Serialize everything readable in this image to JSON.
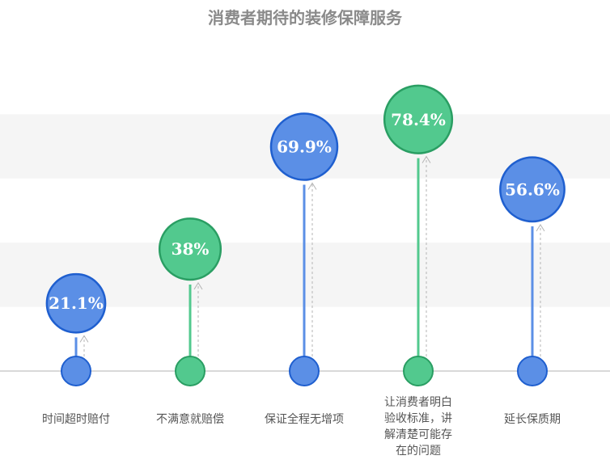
{
  "chart_data": {
    "type": "bar",
    "title": "消费者期待的装修保障服务",
    "categories": [
      "时间超时赔付",
      "不满意就赔偿",
      "保证全程无增项",
      "让消费者明白验收标准，讲解清楚可能存在的问题",
      "延长保质期"
    ],
    "category_lines": [
      [
        "时间超时赔付"
      ],
      [
        "不满意就赔偿"
      ],
      [
        "保证全程无增项"
      ],
      [
        "让消费者明白",
        "验收标准，讲",
        "解清楚可能存",
        "在的问题"
      ],
      [
        "延长保质期"
      ]
    ],
    "values": [
      21.1,
      38,
      69.9,
      78.4,
      56.6
    ],
    "value_labels": [
      "21.1%",
      "38%",
      "69.9%",
      "78.4%",
      "56.6%"
    ],
    "unit": "%",
    "ylim": [
      0,
      100
    ],
    "grid": "alternating-bands",
    "colors": {
      "blue_fill": "#5b8fe6",
      "blue_stroke": "#1f5fcf",
      "green_fill": "#52c98e",
      "green_stroke": "#2a9e63",
      "band": "#f5f5f5",
      "baseline": "#d9d9d9",
      "title": "#8a8a8a"
    },
    "series_color_pattern": [
      "blue",
      "green",
      "blue",
      "green",
      "blue"
    ]
  }
}
